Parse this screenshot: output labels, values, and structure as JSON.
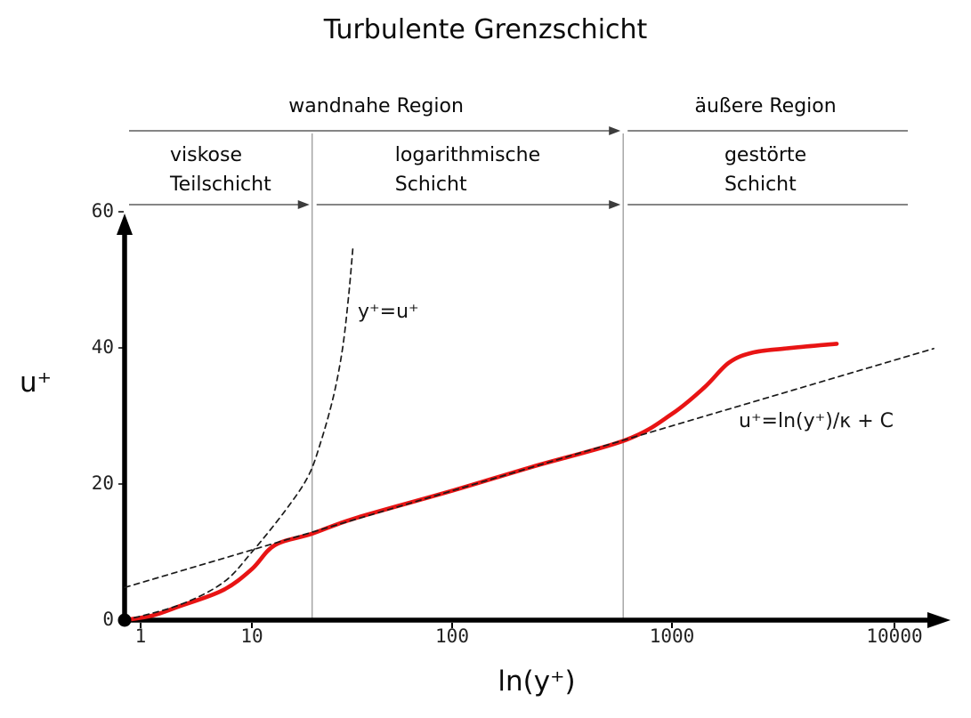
{
  "chart_data": {
    "type": "line",
    "title": "Turbulente Grenzschicht",
    "xlabel": "ln(y⁺)",
    "ylabel": "u⁺",
    "x_scale": "log",
    "x_ticks": [
      1,
      10,
      100,
      1000,
      10000
    ],
    "y_ticks": [
      0,
      20,
      40,
      60
    ],
    "xlim": [
      1,
      10000
    ],
    "ylim": [
      0,
      60
    ],
    "grid": false,
    "layer_boundaries_y_plus": [
      20,
      600
    ],
    "regions": {
      "row1": [
        {
          "label": "wandnahe Region",
          "from_y_plus": null,
          "to_y_plus": 600
        },
        {
          "label": "äußere Region",
          "from_y_plus": 600,
          "to_y_plus": null
        }
      ],
      "row2": [
        {
          "label": "viskose\nTeilschicht",
          "from_y_plus": null,
          "to_y_plus": 20
        },
        {
          "label": "logarithmische\nSchicht",
          "from_y_plus": 20,
          "to_y_plus": 600
        },
        {
          "label": "gestörte\nSchicht",
          "from_y_plus": 600,
          "to_y_plus": null
        }
      ]
    },
    "series": [
      {
        "name": "velocity-profile",
        "style": "solid",
        "color": "#e81414",
        "label": null,
        "points": [
          [
            0.72,
            0
          ],
          [
            1.3,
            0.7
          ],
          [
            2.2,
            2
          ],
          [
            5.5,
            4.4
          ],
          [
            10,
            7.5
          ],
          [
            13,
            11
          ],
          [
            20,
            12.7
          ],
          [
            33,
            15
          ],
          [
            100,
            19
          ],
          [
            230,
            22.5
          ],
          [
            620,
            26.5
          ],
          [
            1000,
            30.3
          ],
          [
            1400,
            34.2
          ],
          [
            1800,
            37.8
          ],
          [
            2300,
            39.3
          ],
          [
            3200,
            39.9
          ],
          [
            5500,
            40.6
          ]
        ]
      },
      {
        "name": "viscous-sublayer-law",
        "style": "dashed",
        "color": "#1a1a1a",
        "label": "y⁺=u⁺",
        "points": [
          [
            0.72,
            0
          ],
          [
            2.2,
            2.2
          ],
          [
            5.5,
            5.5
          ],
          [
            10,
            10
          ],
          [
            14.6,
            16
          ],
          [
            19,
            21
          ],
          [
            22,
            26
          ],
          [
            25.6,
            33
          ],
          [
            28.4,
            40
          ],
          [
            30.5,
            48
          ],
          [
            32,
            55
          ]
        ]
      },
      {
        "name": "log-law",
        "style": "dashed",
        "color": "#1a1a1a",
        "label": "u⁺=ln(y⁺)/κ + C",
        "points": [
          [
            0.72,
            4.8
          ],
          [
            15000,
            39.9
          ]
        ]
      }
    ]
  },
  "colors": {
    "profile_red": "#e81414",
    "axis_black": "#000000",
    "boundary_gray": "#9a9a9a",
    "annotation_dark": "#3c3c3c"
  }
}
